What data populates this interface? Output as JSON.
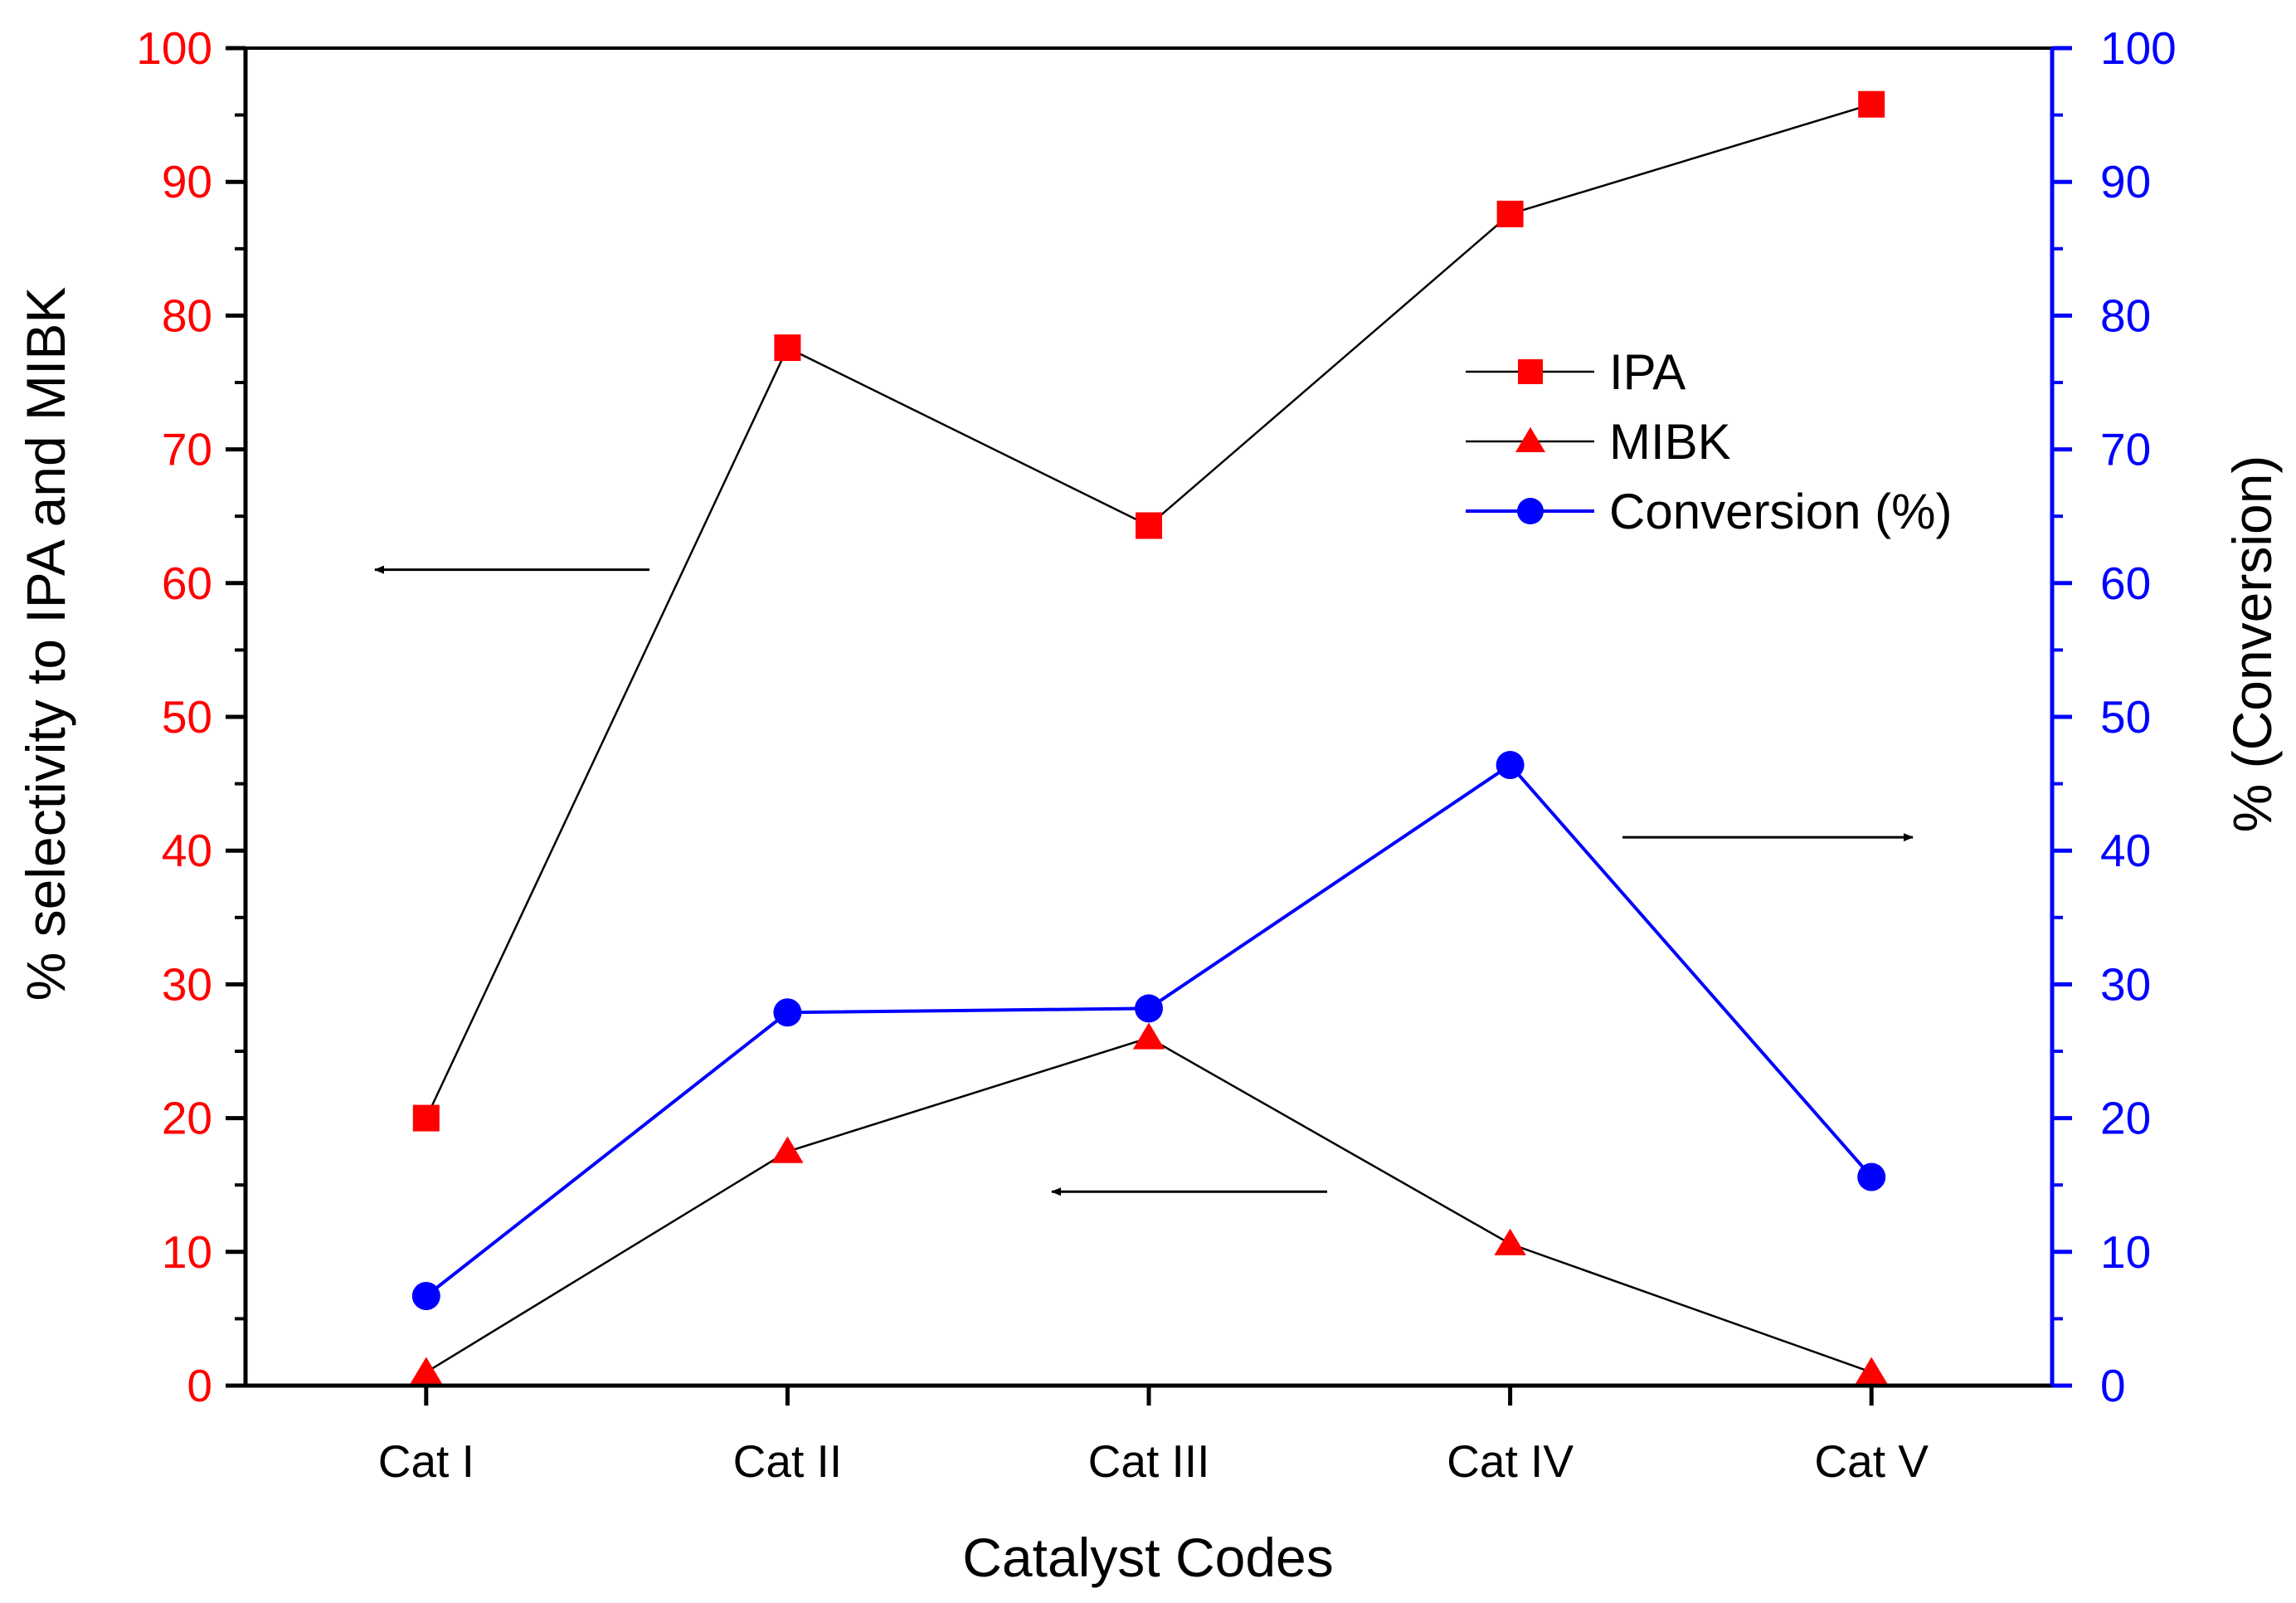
{
  "chart_data": {
    "type": "line",
    "title": "",
    "xlabel": "Catalyst Codes",
    "ylabel_left": "% selectivity to IPA and MIBK",
    "ylabel_right": "% (Conversion)",
    "categories": [
      "Cat I",
      "Cat II",
      "Cat III",
      "Cat IV",
      "Cat V"
    ],
    "ylim_left": [
      0,
      100
    ],
    "ylim_right": [
      0,
      100
    ],
    "y_ticks_left": [
      "0",
      "10",
      "20",
      "30",
      "40",
      "50",
      "60",
      "70",
      "80",
      "90",
      "100"
    ],
    "y_ticks_right": [
      "0",
      "10",
      "20",
      "30",
      "40",
      "50",
      "60",
      "70",
      "80",
      "90",
      "100"
    ],
    "grid": false,
    "legend_position": "top-right",
    "series": [
      {
        "name": "IPA",
        "axis": "left",
        "marker": "square",
        "marker_color": "#ff0000",
        "line_color": "#000000",
        "values": [
          20.0,
          77.6,
          64.3,
          87.6,
          95.8
        ]
      },
      {
        "name": "MIBK",
        "axis": "left",
        "marker": "triangle",
        "marker_color": "#ff0000",
        "line_color": "#000000",
        "values": [
          1.0,
          17.5,
          26.0,
          10.6,
          1.0
        ]
      },
      {
        "name": "Conversion (%)",
        "axis": "right",
        "marker": "circle",
        "marker_color": "#0000ff",
        "line_color": "#0000ff",
        "values": [
          6.7,
          27.9,
          28.2,
          46.4,
          15.6
        ]
      }
    ],
    "annotations": [
      {
        "type": "arrow",
        "direction": "left",
        "points_to": "left axis",
        "near_value": 61
      },
      {
        "type": "arrow",
        "direction": "right",
        "points_to": "right axis",
        "near_value": 41
      },
      {
        "type": "arrow",
        "direction": "left",
        "points_to": "left axis",
        "near_value": 14.5
      }
    ],
    "axis_colors": {
      "left": "#ff0000",
      "right": "#0000ff",
      "axes": "#000000"
    }
  }
}
